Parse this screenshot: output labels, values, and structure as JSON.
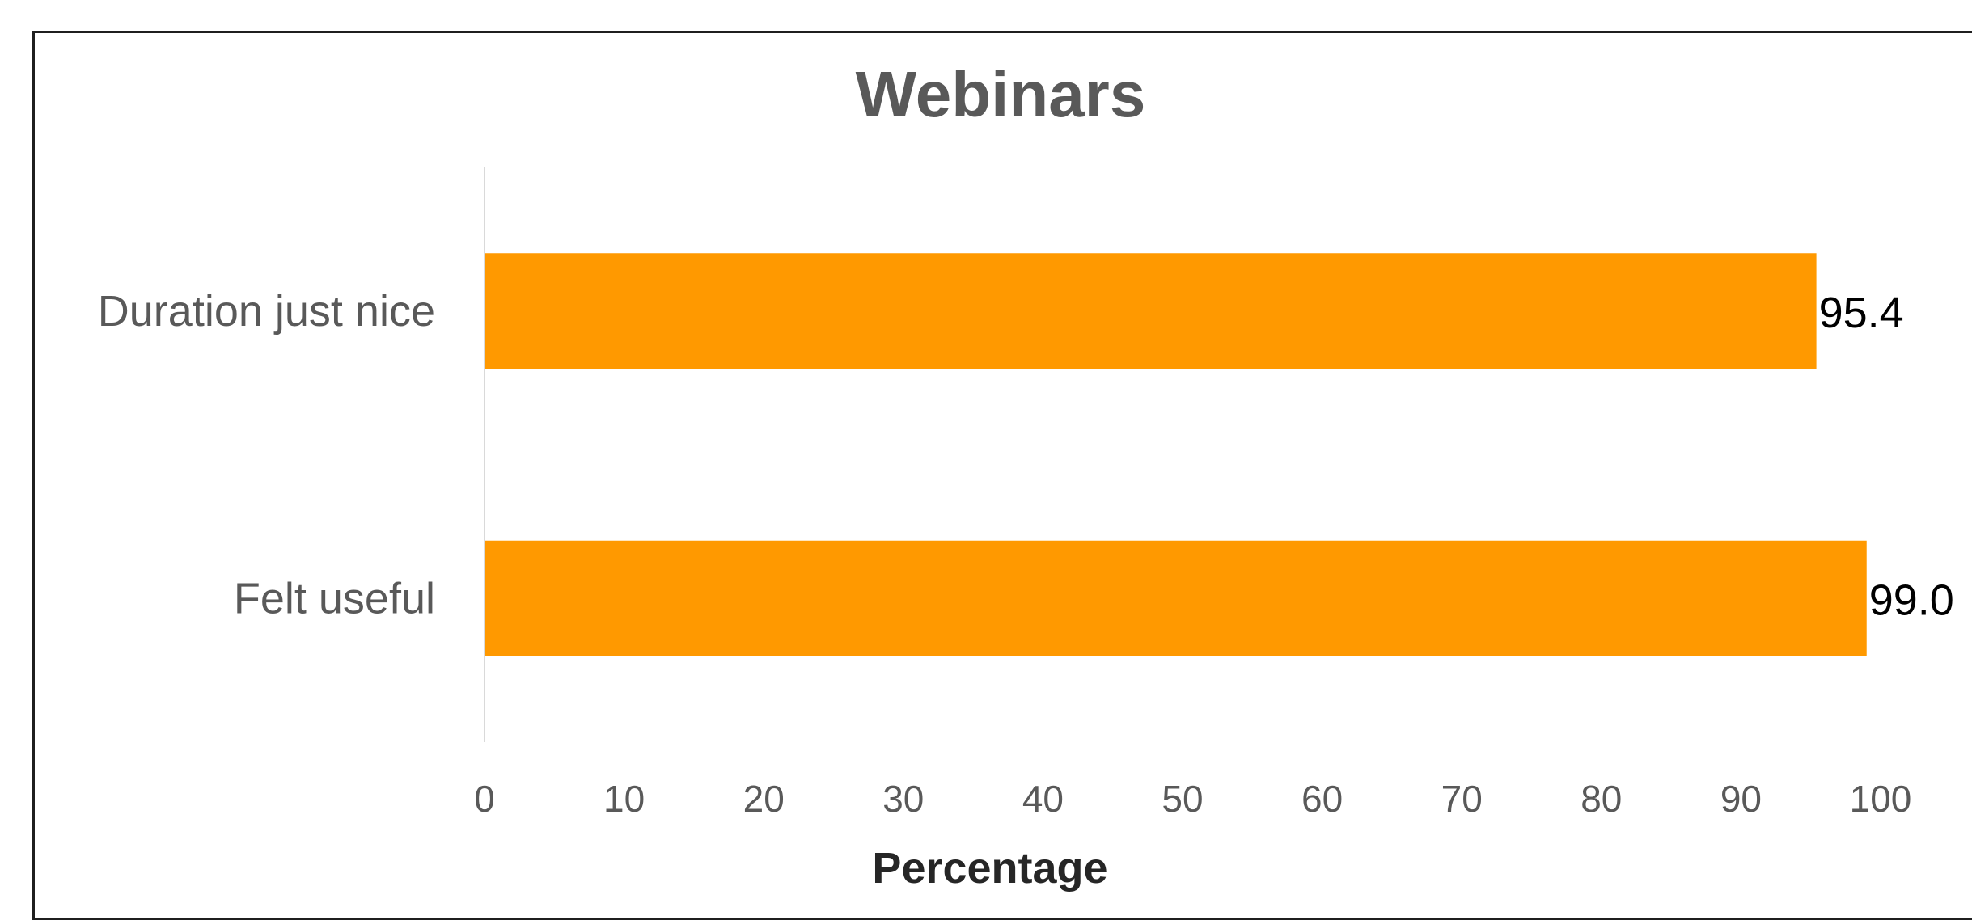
{
  "chart_data": {
    "type": "bar",
    "orientation": "horizontal",
    "title": "Webinars",
    "xlabel": "Percentage",
    "ylabel": "",
    "categories": [
      "Duration just nice",
      "Felt useful"
    ],
    "values": [
      95.4,
      99.0
    ],
    "value_labels": [
      "95.4",
      "99.0"
    ],
    "xlim": [
      0,
      100
    ],
    "xticks": [
      "0",
      "10",
      "20",
      "30",
      "40",
      "50",
      "60",
      "70",
      "80",
      "90",
      "100"
    ],
    "bar_color": "#FF9900",
    "grid": false,
    "legend": "none"
  }
}
